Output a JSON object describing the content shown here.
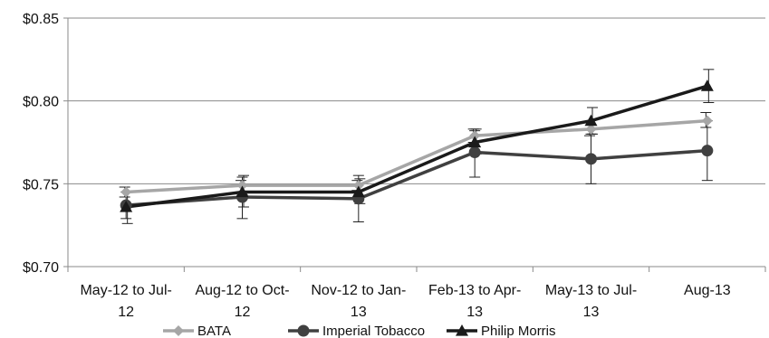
{
  "chart_data": {
    "type": "line",
    "categories": [
      [
        "May-12 to Jul-",
        "12"
      ],
      [
        "Aug-12 to Oct-",
        "12"
      ],
      [
        "Nov-12 to Jan-",
        "13"
      ],
      [
        "Feb-13 to Apr-",
        "13"
      ],
      [
        "May-13 to Jul-",
        "13"
      ],
      [
        "Aug-13"
      ]
    ],
    "y_ticks": [
      "$0.70",
      "$0.75",
      "$0.80",
      "$0.85"
    ],
    "ylim": [
      0.7,
      0.85
    ],
    "grid": "horizontal",
    "legend_position": "bottom",
    "series": [
      {
        "name": "BATA",
        "color": "#a6a6a6",
        "marker": "diamond",
        "values": [
          0.745,
          0.749,
          0.749,
          0.779,
          0.783,
          0.788
        ],
        "err_low": [
          0.742,
          0.745,
          0.746,
          0.775,
          0.779,
          0.784
        ],
        "err_high": [
          0.748,
          0.752,
          0.752,
          0.783,
          0.787,
          0.793
        ]
      },
      {
        "name": "Imperial Tobacco",
        "color": "#404040",
        "marker": "circle",
        "values": [
          0.737,
          0.742,
          0.741,
          0.769,
          0.765,
          0.77
        ],
        "err_low": [
          0.729,
          0.729,
          0.727,
          0.754,
          0.75,
          0.752
        ],
        "err_high": [
          0.745,
          0.754,
          0.755,
          0.782,
          0.78,
          0.788
        ]
      },
      {
        "name": "Philip Morris",
        "color": "#1a1a1a",
        "marker": "triangle",
        "values": [
          0.736,
          0.745,
          0.745,
          0.775,
          0.788,
          0.809
        ],
        "err_low": [
          0.726,
          0.736,
          0.738,
          0.768,
          0.78,
          0.799
        ],
        "err_high": [
          0.745,
          0.755,
          0.753,
          0.783,
          0.796,
          0.819
        ]
      }
    ]
  }
}
